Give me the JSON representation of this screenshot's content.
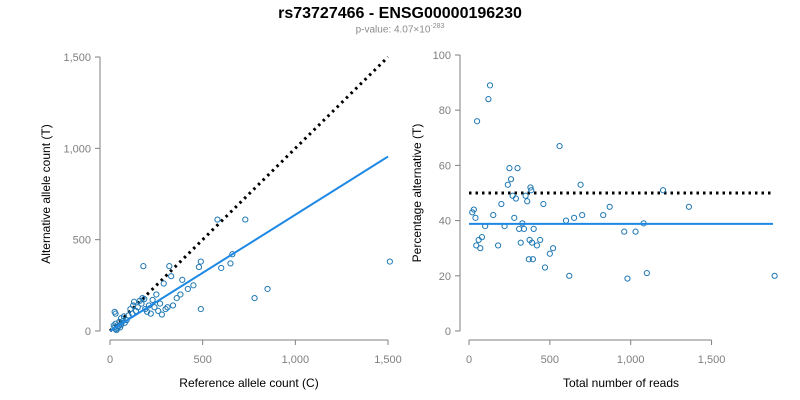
{
  "title": "rs73727466 - ENSG00000196230",
  "subtitle": {
    "prefix": "p-value: 4.07",
    "times": "×",
    "base": "10",
    "exponent": "-283"
  },
  "colors": {
    "points": "#1f78b4",
    "fit": "#1e88e5",
    "reference": "#000000",
    "axis": "#7f7f7f"
  },
  "chart_data": [
    {
      "type": "scatter",
      "xlabel": "Reference allele count (C)",
      "ylabel": "Alternative allele count (T)",
      "xlim": [
        0,
        1500
      ],
      "ylim": [
        0,
        1500
      ],
      "xticks": [
        0,
        500,
        1000,
        1500
      ],
      "yticks": [
        0,
        500,
        1000,
        1500
      ],
      "xtick_labels": [
        "0",
        "500",
        "1,000",
        "1,500"
      ],
      "ytick_labels": [
        "0",
        "500",
        "1,000",
        "1,500"
      ],
      "reference_line": {
        "style": "dotted",
        "x": [
          0,
          1500
        ],
        "y": [
          0,
          1500
        ]
      },
      "fit_line": {
        "x": [
          0,
          1500
        ],
        "y": [
          0,
          955
        ]
      },
      "points": [
        [
          25,
          20
        ],
        [
          30,
          10
        ],
        [
          35,
          5
        ],
        [
          40,
          15
        ],
        [
          45,
          25
        ],
        [
          50,
          30
        ],
        [
          55,
          20
        ],
        [
          60,
          35
        ],
        [
          30,
          40
        ],
        [
          20,
          30
        ],
        [
          25,
          105
        ],
        [
          30,
          95
        ],
        [
          50,
          50
        ],
        [
          60,
          70
        ],
        [
          70,
          55
        ],
        [
          75,
          80
        ],
        [
          80,
          45
        ],
        [
          90,
          60
        ],
        [
          100,
          85
        ],
        [
          110,
          120
        ],
        [
          120,
          95
        ],
        [
          125,
          140
        ],
        [
          130,
          160
        ],
        [
          140,
          110
        ],
        [
          150,
          130
        ],
        [
          160,
          165
        ],
        [
          170,
          150
        ],
        [
          175,
          180
        ],
        [
          180,
          355
        ],
        [
          185,
          175
        ],
        [
          190,
          120
        ],
        [
          200,
          105
        ],
        [
          210,
          140
        ],
        [
          220,
          95
        ],
        [
          230,
          170
        ],
        [
          240,
          130
        ],
        [
          250,
          200
        ],
        [
          260,
          110
        ],
        [
          270,
          150
        ],
        [
          280,
          90
        ],
        [
          290,
          260
        ],
        [
          300,
          120
        ],
        [
          310,
          130
        ],
        [
          320,
          355
        ],
        [
          330,
          300
        ],
        [
          340,
          140
        ],
        [
          360,
          180
        ],
        [
          380,
          200
        ],
        [
          390,
          280
        ],
        [
          420,
          230
        ],
        [
          450,
          250
        ],
        [
          480,
          350
        ],
        [
          490,
          380
        ],
        [
          490,
          120
        ],
        [
          580,
          610
        ],
        [
          600,
          345
        ],
        [
          650,
          370
        ],
        [
          660,
          420
        ],
        [
          730,
          610
        ],
        [
          780,
          180
        ],
        [
          850,
          230
        ],
        [
          1510,
          380
        ]
      ]
    },
    {
      "type": "scatter",
      "xlabel": "Total number of reads",
      "ylabel": "Percentage alternative (T)",
      "xlim": [
        0,
        1880
      ],
      "ylim": [
        0,
        100
      ],
      "xticks": [
        0,
        500,
        1000,
        1500
      ],
      "yticks": [
        0,
        20,
        40,
        60,
        80,
        100
      ],
      "xtick_labels": [
        "0",
        "500",
        "1,000",
        "1,500"
      ],
      "ytick_labels": [
        "0",
        "20",
        "40",
        "60",
        "80",
        "100"
      ],
      "reference_line": {
        "style": "dotted",
        "y": 50
      },
      "fit_line": {
        "y": 38.8
      },
      "points": [
        [
          20,
          43
        ],
        [
          30,
          44
        ],
        [
          40,
          41
        ],
        [
          45,
          31
        ],
        [
          50,
          76
        ],
        [
          60,
          33
        ],
        [
          70,
          30
        ],
        [
          80,
          34
        ],
        [
          100,
          38
        ],
        [
          120,
          84
        ],
        [
          130,
          89
        ],
        [
          150,
          42
        ],
        [
          180,
          31
        ],
        [
          200,
          46
        ],
        [
          220,
          38
        ],
        [
          240,
          53
        ],
        [
          250,
          59
        ],
        [
          260,
          55
        ],
        [
          270,
          49
        ],
        [
          280,
          41
        ],
        [
          290,
          48
        ],
        [
          300,
          59
        ],
        [
          310,
          37
        ],
        [
          320,
          32
        ],
        [
          330,
          39
        ],
        [
          340,
          37
        ],
        [
          350,
          49
        ],
        [
          360,
          47
        ],
        [
          370,
          26
        ],
        [
          375,
          33
        ],
        [
          380,
          52
        ],
        [
          385,
          51
        ],
        [
          390,
          32
        ],
        [
          395,
          26
        ],
        [
          400,
          37
        ],
        [
          420,
          31
        ],
        [
          440,
          33
        ],
        [
          460,
          46
        ],
        [
          470,
          23
        ],
        [
          500,
          28
        ],
        [
          520,
          30
        ],
        [
          560,
          67
        ],
        [
          600,
          40
        ],
        [
          620,
          20
        ],
        [
          650,
          41
        ],
        [
          690,
          53
        ],
        [
          700,
          42
        ],
        [
          830,
          42
        ],
        [
          870,
          45
        ],
        [
          960,
          36
        ],
        [
          980,
          19
        ],
        [
          1030,
          36
        ],
        [
          1080,
          39
        ],
        [
          1100,
          21
        ],
        [
          1200,
          51
        ],
        [
          1360,
          45
        ],
        [
          1890,
          20
        ]
      ]
    }
  ]
}
